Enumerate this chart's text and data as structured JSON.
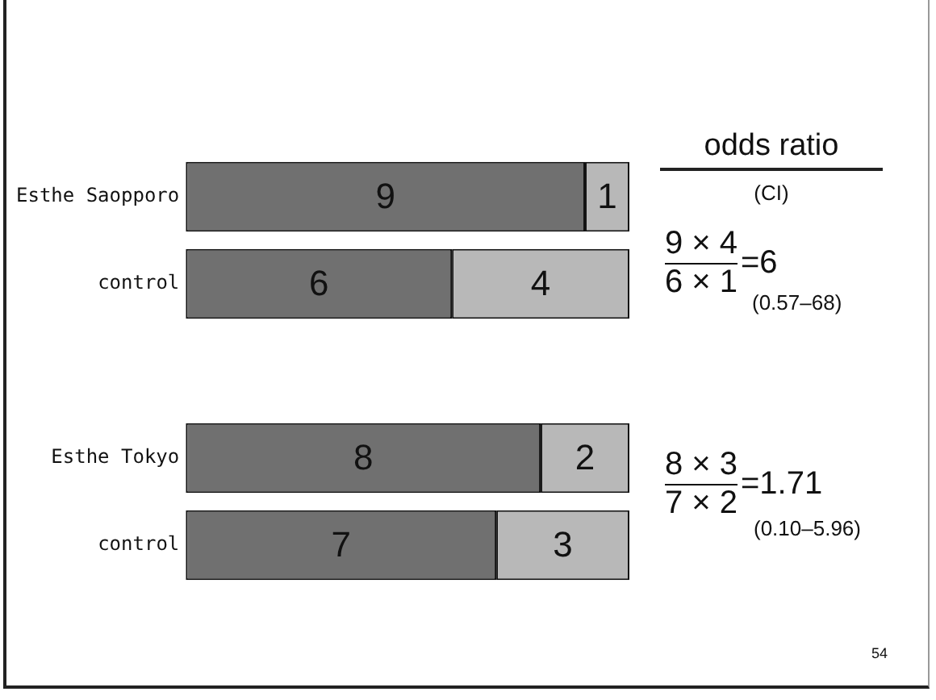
{
  "chart_data": {
    "type": "bar",
    "orientation": "horizontal",
    "stacked": true,
    "categories": [
      "Esthe Saopporo",
      "control",
      null,
      "Esthe Tokyo",
      "control"
    ],
    "series": [
      {
        "color": "#707070",
        "values": [
          9,
          6,
          null,
          8,
          7
        ]
      },
      {
        "color": "#b8b8b8",
        "values": [
          1,
          4,
          null,
          2,
          3
        ]
      }
    ],
    "xlim": [
      0,
      10
    ],
    "tick_labels": "y",
    "data_labels": true,
    "annotations": [
      "odds ratio",
      "(CI)",
      "9 × 4",
      "6 × 1",
      "=6",
      "(0.57–68)",
      "8 × 3",
      "7 × 2",
      "=1.71",
      "(0.10–5.96)",
      "54"
    ]
  }
}
